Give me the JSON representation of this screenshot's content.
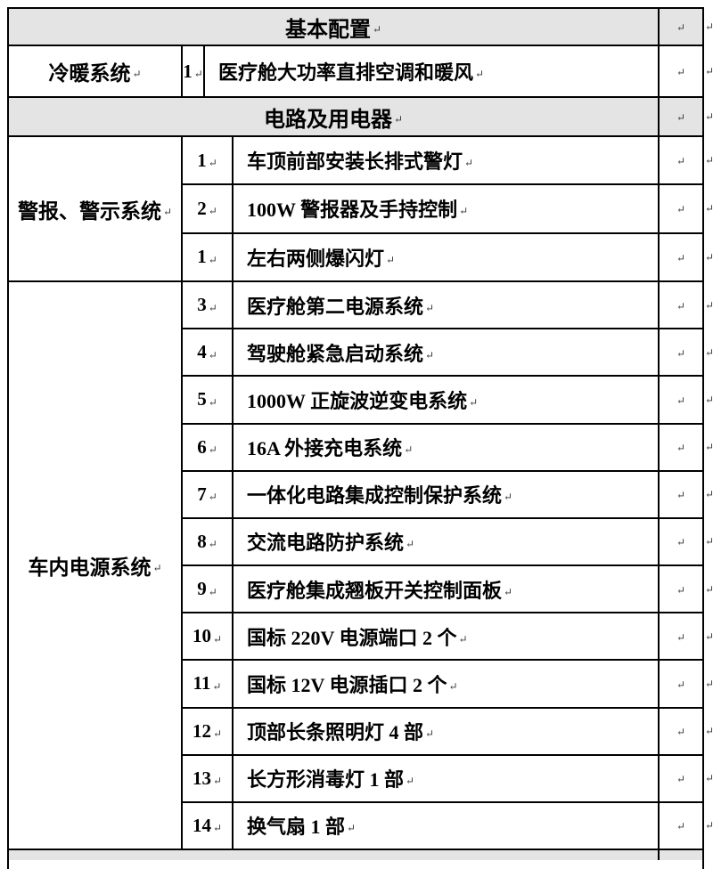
{
  "colors": {
    "header_bg": "#e4e4e4",
    "border": "#000000",
    "mark": "#3a3a3a"
  },
  "marks": {
    "paragraph": "↵"
  },
  "doc": {
    "header1": "基本配置",
    "coolheat": {
      "label": "冷暖系统",
      "num": "1",
      "text": "医疗舱大功率直排空调和暖风"
    },
    "header2": "电路及用电器",
    "sections": [
      {
        "label": "警报、警示系统",
        "rows": [
          {
            "num": "1",
            "text": "车顶前部安装长排式警灯"
          },
          {
            "num": "2",
            "text": "100W 警报器及手持控制"
          },
          {
            "num": "1",
            "text": "左右两侧爆闪灯"
          }
        ]
      },
      {
        "label": "车内电源系统",
        "rows": [
          {
            "num": "3",
            "text": "医疗舱第二电源系统"
          },
          {
            "num": "4",
            "text": "驾驶舱紧急启动系统"
          },
          {
            "num": "5",
            "text": "1000W 正旋波逆变电系统"
          },
          {
            "num": "6",
            "text": "16A 外接充电系统"
          },
          {
            "num": "7",
            "text": "一体化电路集成控制保护系统"
          },
          {
            "num": "8",
            "text": "交流电路防护系统"
          },
          {
            "num": "9",
            "text": "医疗舱集成翘板开关控制面板"
          },
          {
            "num": "10",
            "text": "国标 220V 电源端口 2 个"
          },
          {
            "num": "11",
            "text": "国标 12V 电源插口 2 个"
          },
          {
            "num": "12",
            "text": "顶部长条照明灯 4 部"
          },
          {
            "num": "13",
            "text": "长方形消毒灯 1 部"
          },
          {
            "num": "14",
            "text": "换气扇 1 部"
          }
        ]
      }
    ]
  }
}
